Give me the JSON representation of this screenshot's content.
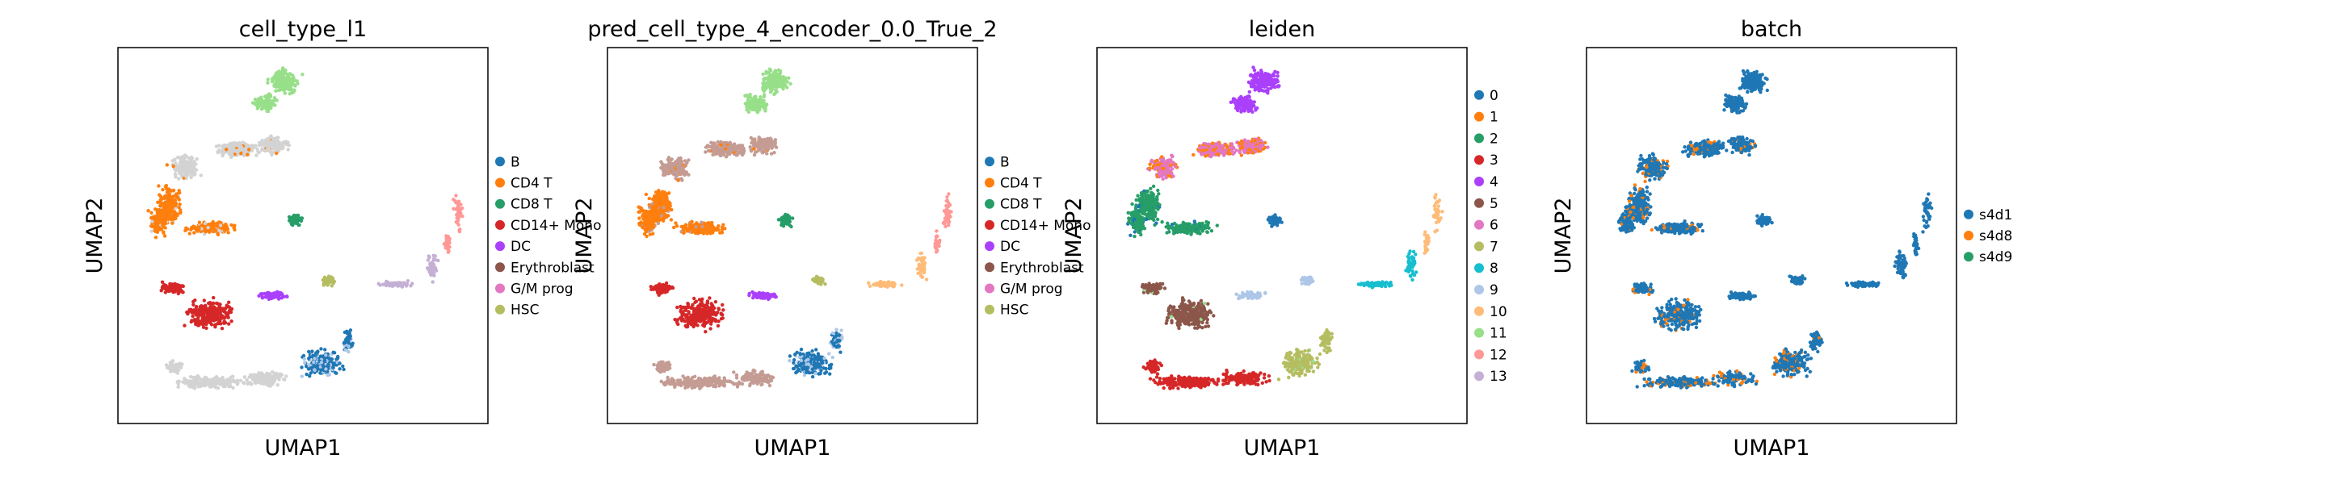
{
  "chart_data": [
    {
      "type": "scatter",
      "title": "cell_type_l1",
      "xlabel": "UMAP1",
      "ylabel": "UMAP2",
      "grid": false,
      "legend_placement": "right",
      "categories": [
        {
          "name": "B",
          "color": "#1f77b4"
        },
        {
          "name": "CD4 T",
          "color": "#ff7f0e"
        },
        {
          "name": "CD8 T",
          "color": "#279e68"
        },
        {
          "name": "CD14+ Mono",
          "color": "#d62728"
        },
        {
          "name": "DC",
          "color": "#aa40fc"
        },
        {
          "name": "Erythroblast",
          "color": "#8c564b"
        },
        {
          "name": "G/M prog",
          "color": "#e377c2"
        },
        {
          "name": "HSC",
          "color": "#b5bd61"
        }
      ],
      "unlabeled_color": "#d3d3d3"
    },
    {
      "type": "scatter",
      "title": "pred_cell_type_4_encoder_0.0_True_2",
      "xlabel": "UMAP1",
      "ylabel": "UMAP2",
      "grid": false,
      "legend_placement": "right",
      "categories": [
        {
          "name": "B",
          "color": "#1f77b4"
        },
        {
          "name": "CD4 T",
          "color": "#ff7f0e"
        },
        {
          "name": "CD8 T",
          "color": "#279e68"
        },
        {
          "name": "CD14+ Mono",
          "color": "#d62728"
        },
        {
          "name": "DC",
          "color": "#aa40fc"
        },
        {
          "name": "Erythroblast",
          "color": "#8c564b"
        },
        {
          "name": "G/M prog",
          "color": "#e377c2"
        },
        {
          "name": "HSC",
          "color": "#b5bd61"
        }
      ],
      "unlabeled_color": "#c49c94"
    },
    {
      "type": "scatter",
      "title": "leiden",
      "xlabel": "UMAP1",
      "ylabel": "UMAP2",
      "grid": false,
      "legend_placement": "right",
      "categories": [
        {
          "name": "0",
          "color": "#1f77b4"
        },
        {
          "name": "1",
          "color": "#ff7f0e"
        },
        {
          "name": "2",
          "color": "#279e68"
        },
        {
          "name": "3",
          "color": "#d62728"
        },
        {
          "name": "4",
          "color": "#aa40fc"
        },
        {
          "name": "5",
          "color": "#8c564b"
        },
        {
          "name": "6",
          "color": "#e377c2"
        },
        {
          "name": "7",
          "color": "#b5bd61"
        },
        {
          "name": "8",
          "color": "#17becf"
        },
        {
          "name": "9",
          "color": "#aec7e8"
        },
        {
          "name": "10",
          "color": "#ffbb78"
        },
        {
          "name": "11",
          "color": "#98df8a"
        },
        {
          "name": "12",
          "color": "#ff9896"
        },
        {
          "name": "13",
          "color": "#c5b0d5"
        }
      ]
    },
    {
      "type": "scatter",
      "title": "batch",
      "xlabel": "UMAP1",
      "ylabel": "UMAP2",
      "grid": false,
      "legend_placement": "right",
      "categories": [
        {
          "name": "s4d1",
          "color": "#1f77b4"
        },
        {
          "name": "s4d8",
          "color": "#ff7f0e"
        },
        {
          "name": "s4d9",
          "color": "#279e68"
        }
      ]
    }
  ]
}
